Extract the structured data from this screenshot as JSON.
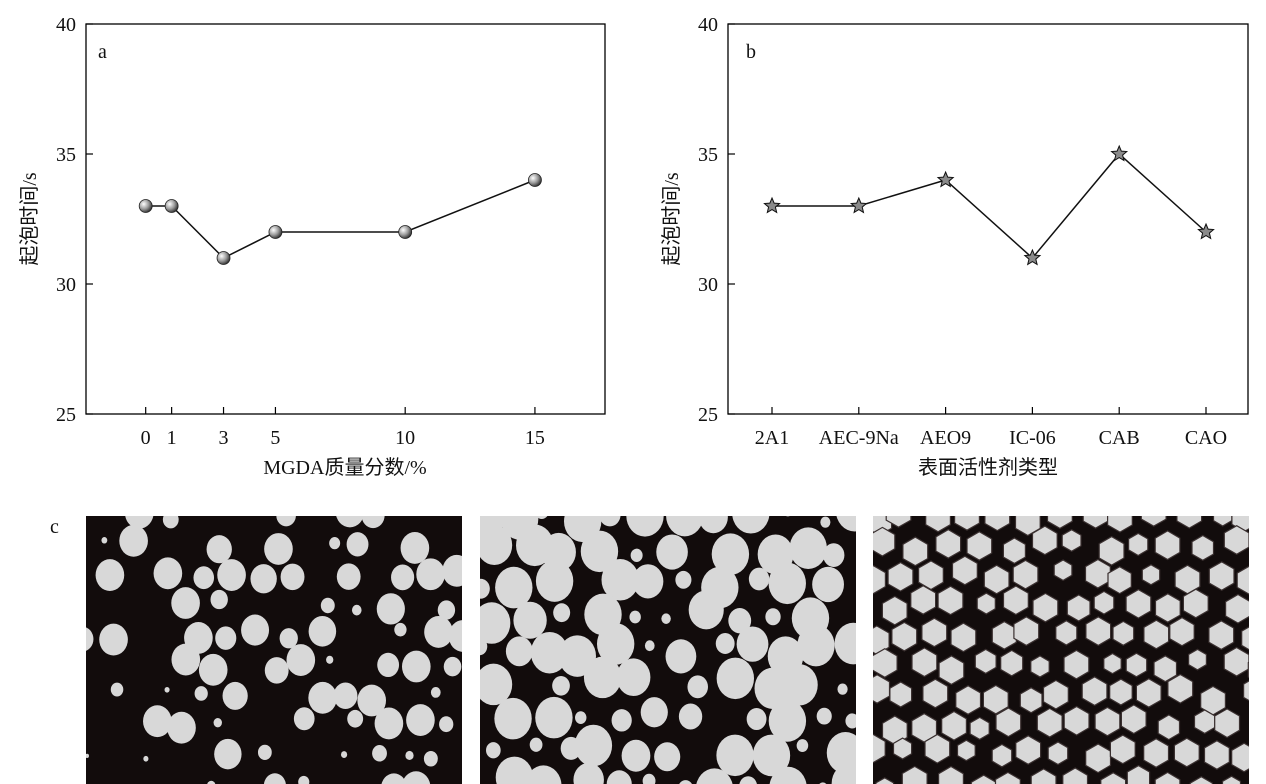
{
  "chart_data": [
    {
      "panel": "a",
      "type": "line",
      "x": [
        0,
        1,
        3,
        5,
        10,
        15
      ],
      "x_tick_labels": [
        "0",
        "1",
        "3",
        "5",
        "10",
        "15"
      ],
      "y": [
        33,
        33,
        31,
        32,
        32,
        34
      ],
      "xlabel": "MGDA质量分数/%",
      "ylabel": "起泡时间/s",
      "xlim": [
        -2.3,
        17.7
      ],
      "ylim": [
        25,
        40
      ],
      "y_ticks": [
        25,
        30,
        35,
        40
      ],
      "marker": "sphere",
      "grid": false
    },
    {
      "panel": "b",
      "type": "line",
      "categories": [
        "2A1",
        "AEC-9Na",
        "AEO9",
        "IC-06",
        "CAB",
        "CAO"
      ],
      "values": [
        33,
        33,
        34,
        31,
        35,
        32
      ],
      "xlabel": "表面活性剂类型",
      "ylabel": "起泡时间/s",
      "ylim": [
        25,
        40
      ],
      "y_ticks": [
        25,
        30,
        35,
        40
      ],
      "marker": "star",
      "grid": false
    }
  ],
  "photos": {
    "panel": "c",
    "items": [
      {
        "name": "foam-photo-sparse",
        "bubble_density": "sparse"
      },
      {
        "name": "foam-photo-medium",
        "bubble_density": "medium"
      },
      {
        "name": "foam-photo-dense",
        "bubble_density": "dense"
      }
    ]
  },
  "colors": {
    "background": "#ffffff",
    "ink": "#111111",
    "photo_dark": "#120c0c",
    "bubble": "#d8d8d8"
  }
}
